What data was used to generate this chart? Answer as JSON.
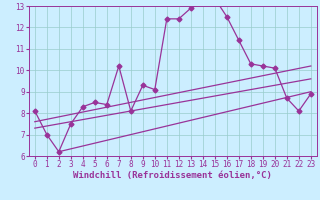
{
  "background_color": "#cceeff",
  "line_color": "#993399",
  "grid_color": "#99cccc",
  "xlabel": "Windchill (Refroidissement éolien,°C)",
  "xlabel_color": "#993399",
  "tick_color": "#993399",
  "xlim": [
    -0.5,
    23.5
  ],
  "ylim": [
    6,
    13
  ],
  "yticks": [
    6,
    7,
    8,
    9,
    10,
    11,
    12,
    13
  ],
  "xticks": [
    0,
    1,
    2,
    3,
    4,
    5,
    6,
    7,
    8,
    9,
    10,
    11,
    12,
    13,
    14,
    15,
    16,
    17,
    18,
    19,
    20,
    21,
    22,
    23
  ],
  "series1_x": [
    0,
    1,
    2,
    3,
    4,
    5,
    6,
    7,
    8,
    9,
    10,
    11,
    12,
    13,
    14,
    15,
    16,
    17,
    18,
    19,
    20,
    21,
    22,
    23
  ],
  "series1_y": [
    8.1,
    7.0,
    6.2,
    7.5,
    8.3,
    8.5,
    8.4,
    10.2,
    8.1,
    9.3,
    9.1,
    12.4,
    12.4,
    12.9,
    13.2,
    13.35,
    12.5,
    11.4,
    10.3,
    10.2,
    10.1,
    8.7,
    8.1,
    8.9
  ],
  "trend1_x": [
    0,
    23
  ],
  "trend1_y": [
    7.6,
    10.2
  ],
  "trend2_x": [
    0,
    23
  ],
  "trend2_y": [
    7.3,
    9.6
  ],
  "trend3_x": [
    2,
    23
  ],
  "trend3_y": [
    6.2,
    9.0
  ],
  "marker_size": 2.5,
  "linewidth": 0.9,
  "font_size_ticks": 5.5,
  "font_size_label": 6.5
}
